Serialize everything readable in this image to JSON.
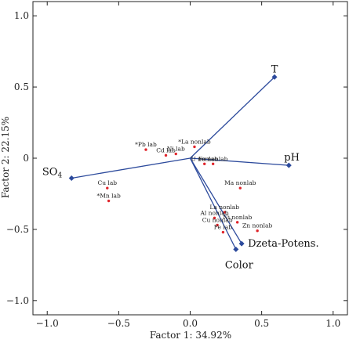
{
  "chart_data": {
    "type": "scatter",
    "xlabel": "Factor 1: 34.92%",
    "ylabel": "Factor 2: 22.15%",
    "xlim": [
      -1.1,
      1.1
    ],
    "ylim": [
      -1.1,
      1.1
    ],
    "xticks": [
      -1.0,
      -0.5,
      0.0,
      0.5,
      1.0
    ],
    "yticks": [
      -1.0,
      -0.5,
      0.0,
      0.5,
      1.0
    ],
    "xtick_labels": [
      "−1.0",
      "−0.5",
      "0.0",
      "0.5",
      "1.0"
    ],
    "ytick_labels": [
      "−1.0",
      "−0.5",
      "0",
      "0.5",
      "1.0"
    ],
    "grid": false,
    "vector_color": "#2c4a9c",
    "point_color": "#e0252b",
    "variables": [
      {
        "label": "T",
        "x": 0.59,
        "y": 0.57
      },
      {
        "label": "pH",
        "x": 0.69,
        "y": -0.05
      },
      {
        "label": "SO",
        "sub": "4",
        "x": -0.83,
        "y": -0.14
      },
      {
        "label": "Dzeta-Potens.",
        "x": 0.36,
        "y": -0.6
      },
      {
        "label": "Color",
        "x": 0.32,
        "y": -0.64
      }
    ],
    "cases": [
      {
        "label": "*Pb lab",
        "x": -0.31,
        "y": 0.06
      },
      {
        "label": "*La nonlab",
        "x": 0.03,
        "y": 0.08
      },
      {
        "label": "Cd lab",
        "x": -0.17,
        "y": 0.02
      },
      {
        "label": "Ni lab",
        "x": -0.1,
        "y": 0.03
      },
      {
        "label": "U nonlab",
        "x": 0.1,
        "y": -0.04
      },
      {
        "label": "Fe nonlab",
        "x": 0.16,
        "y": -0.04
      },
      {
        "label": "Cu lab",
        "x": -0.58,
        "y": -0.21
      },
      {
        "label": "*Mn lab",
        "x": -0.57,
        "y": -0.3
      },
      {
        "label": "Ma nonlab",
        "x": 0.35,
        "y": -0.21
      },
      {
        "label": "La nonlab",
        "x": 0.24,
        "y": -0.38
      },
      {
        "label": "Al nonlab",
        "x": 0.17,
        "y": -0.42
      },
      {
        "label": "Ni nonlab",
        "x": 0.33,
        "y": -0.45
      },
      {
        "label": "Cu nonlab",
        "x": 0.19,
        "y": -0.47
      },
      {
        "label": "Zn nonlab",
        "x": 0.47,
        "y": -0.51
      },
      {
        "label": "Fe lab",
        "x": 0.23,
        "y": -0.52
      }
    ]
  }
}
